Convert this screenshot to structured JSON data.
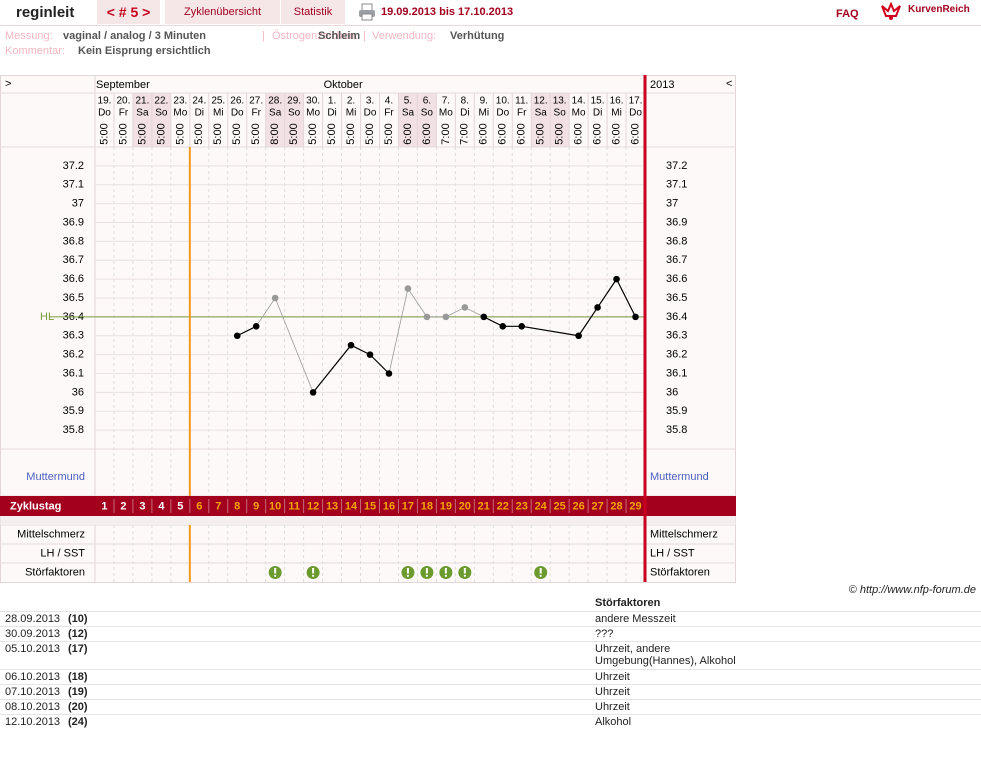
{
  "header": {
    "user": "reginleit",
    "cycle_nav": "< # 5 >",
    "tabs": [
      "Zyklenübersicht",
      "Statistik"
    ],
    "period": "19.09.2013 bis 17.10.2013",
    "faq": "FAQ",
    "logo": "KurvenReich"
  },
  "meta": {
    "separator": "|",
    "fields": [
      {
        "label": "Messung:",
        "value": "vaginal / analog / 3 Minuten"
      },
      {
        "label": "Östrogenzeichen:",
        "value": "Schleim"
      },
      {
        "label": "Verwendung:",
        "value": "Verhütung"
      },
      {
        "label": "Kommentar:",
        "value": "Kein Eisprung ersichtlich"
      }
    ]
  },
  "chart_data": {
    "type": "line",
    "nav_left": ">",
    "nav_right": "<",
    "year": "2013",
    "columns": [
      {
        "day": "19.",
        "weekday": "Do",
        "time": "5:00",
        "month": "September",
        "menstruation": true
      },
      {
        "day": "20.",
        "weekday": "Fr",
        "time": "5:00",
        "menstruation": true
      },
      {
        "day": "21.",
        "weekday": "Sa",
        "time": "5:00",
        "weekend": true,
        "menstruation": true
      },
      {
        "day": "22.",
        "weekday": "So",
        "time": "5:00",
        "weekend": true,
        "menstruation": true
      },
      {
        "day": "23.",
        "weekday": "Mo",
        "time": "5:00",
        "menstruation": true
      },
      {
        "day": "24.",
        "weekday": "Di",
        "time": "5:00"
      },
      {
        "day": "25.",
        "weekday": "Mi",
        "time": "5:00"
      },
      {
        "day": "26.",
        "weekday": "Do",
        "time": "5:00"
      },
      {
        "day": "27.",
        "weekday": "Fr",
        "time": "5:00"
      },
      {
        "day": "28.",
        "weekday": "Sa",
        "time": "8:00",
        "weekend": true,
        "stoerfaktor": true
      },
      {
        "day": "29.",
        "weekday": "So",
        "time": "5:00",
        "weekend": true
      },
      {
        "day": "30.",
        "weekday": "Mo",
        "time": "5:00",
        "stoerfaktor": true
      },
      {
        "day": "1.",
        "weekday": "Di",
        "time": "5:00",
        "month": "Oktober"
      },
      {
        "day": "2.",
        "weekday": "Mi",
        "time": "5:00"
      },
      {
        "day": "3.",
        "weekday": "Do",
        "time": "5:00"
      },
      {
        "day": "4.",
        "weekday": "Fr",
        "time": "5:00"
      },
      {
        "day": "5.",
        "weekday": "Sa",
        "time": "6:00",
        "weekend": true,
        "stoerfaktor": true
      },
      {
        "day": "6.",
        "weekday": "So",
        "time": "6:00",
        "weekend": true,
        "stoerfaktor": true
      },
      {
        "day": "7.",
        "weekday": "Mo",
        "time": "7:00",
        "stoerfaktor": true
      },
      {
        "day": "8.",
        "weekday": "Di",
        "time": "7:00",
        "stoerfaktor": true
      },
      {
        "day": "9.",
        "weekday": "Mi",
        "time": "6:00"
      },
      {
        "day": "10.",
        "weekday": "Do",
        "time": "6:00"
      },
      {
        "day": "11.",
        "weekday": "Fr",
        "time": "6:00"
      },
      {
        "day": "12.",
        "weekday": "Sa",
        "time": "5:00",
        "weekend": true,
        "stoerfaktor": true
      },
      {
        "day": "13.",
        "weekday": "So",
        "time": "5:00",
        "weekend": true
      },
      {
        "day": "14.",
        "weekday": "Mo",
        "time": "6:00"
      },
      {
        "day": "15.",
        "weekday": "Di",
        "time": "6:00"
      },
      {
        "day": "16.",
        "weekday": "Mi",
        "time": "6:00"
      },
      {
        "day": "17.",
        "weekday": "Do",
        "time": "6:00"
      }
    ],
    "values": [
      null,
      null,
      null,
      null,
      null,
      null,
      null,
      36.3,
      36.35,
      36.5,
      null,
      36.0,
      null,
      36.25,
      36.2,
      36.1,
      36.55,
      36.4,
      36.4,
      36.45,
      36.4,
      36.35,
      36.35,
      null,
      null,
      36.3,
      36.45,
      36.6,
      36.4
    ],
    "point_colors": [
      null,
      null,
      null,
      null,
      null,
      null,
      null,
      "#000",
      "#000",
      "#999",
      null,
      "#000",
      null,
      "#000",
      "#000",
      "#000",
      "#999",
      "#999",
      "#999",
      "#999",
      "#000",
      "#000",
      "#000",
      null,
      null,
      "#000",
      "#000",
      "#000",
      "#000"
    ],
    "ylim": [
      35.7,
      37.3
    ],
    "yticks": [
      35.8,
      35.9,
      36,
      36.1,
      36.2,
      36.3,
      36.4,
      36.5,
      36.6,
      36.7,
      36.8,
      36.9,
      37,
      37.1,
      37.2
    ],
    "hl": {
      "value": 36.4,
      "label": "HL",
      "color": "#7a9a3a"
    },
    "cycle_days": [
      1,
      2,
      3,
      4,
      5,
      6,
      7,
      8,
      9,
      10,
      11,
      12,
      13,
      14,
      15,
      16,
      17,
      18,
      19,
      20,
      21,
      22,
      23,
      24,
      25,
      26,
      27,
      28,
      29
    ],
    "cycle_day_color": "#f5a300",
    "menstruation_day_color": "#ffffff",
    "rows": {
      "muttermund": "Muttermund",
      "zyklustag": "Zyklustag",
      "mittelschmerz": "Mittelschmerz",
      "lh": "LH / SST",
      "stoerfaktoren": "Störfaktoren"
    }
  },
  "copyright": "© http://www.nfp-forum.de",
  "table": {
    "header": "Störfaktoren",
    "rows": [
      {
        "date": "28.09.2013",
        "day": "(10)",
        "text": "andere Messzeit"
      },
      {
        "date": "30.09.2013",
        "day": "(12)",
        "text": "???"
      },
      {
        "date": "05.10.2013",
        "day": "(17)",
        "text": "Uhrzeit, andere Umgebung(Hannes), Alkohol"
      },
      {
        "date": "06.10.2013",
        "day": "(18)",
        "text": "Uhrzeit"
      },
      {
        "date": "07.10.2013",
        "day": "(19)",
        "text": "Uhrzeit"
      },
      {
        "date": "08.10.2013",
        "day": "(20)",
        "text": "Uhrzeit"
      },
      {
        "date": "12.10.2013",
        "day": "(24)",
        "text": "Alkohol"
      }
    ]
  }
}
